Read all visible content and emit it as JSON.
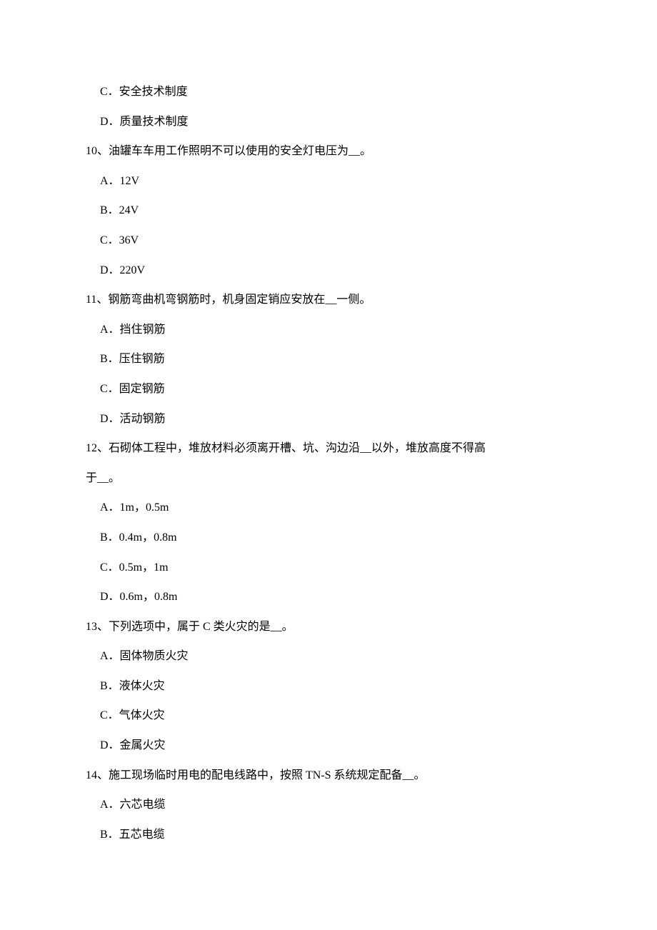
{
  "text_color": "#000000",
  "background_color": "#ffffff",
  "font_size_pt": 16,
  "line_height": 2.6,
  "lines": [
    {
      "type": "option",
      "text": "C．安全技术制度"
    },
    {
      "type": "option",
      "text": "D．质量技术制度"
    },
    {
      "type": "question",
      "text": "10、油罐车车用工作照明不可以使用的安全灯电压为__。"
    },
    {
      "type": "option",
      "text": "A．12V"
    },
    {
      "type": "option",
      "text": "B．24V"
    },
    {
      "type": "option",
      "text": "C．36V"
    },
    {
      "type": "option",
      "text": "D．220V"
    },
    {
      "type": "question",
      "text": "11、钢筋弯曲机弯钢筋时，机身固定销应安放在__一侧。"
    },
    {
      "type": "option",
      "text": "A．挡住钢筋"
    },
    {
      "type": "option",
      "text": "B．压住钢筋"
    },
    {
      "type": "option",
      "text": "C．固定钢筋"
    },
    {
      "type": "option",
      "text": "D．活动钢筋"
    },
    {
      "type": "question",
      "text": "12、石砌体工程中，堆放材料必须离开槽、坑、沟边沿__以外，堆放高度不得高"
    },
    {
      "type": "question",
      "text": "于__。"
    },
    {
      "type": "option",
      "text": "A．1m，0.5m"
    },
    {
      "type": "option",
      "text": "B．0.4m，0.8m"
    },
    {
      "type": "option",
      "text": "C．0.5m，1m"
    },
    {
      "type": "option",
      "text": "D．0.6m，0.8m"
    },
    {
      "type": "question",
      "text": "13、下列选项中，属于 C 类火灾的是__。"
    },
    {
      "type": "option",
      "text": "A．固体物质火灾"
    },
    {
      "type": "option",
      "text": "B．液体火灾"
    },
    {
      "type": "option",
      "text": "C．气体火灾"
    },
    {
      "type": "option",
      "text": "D．金属火灾"
    },
    {
      "type": "question",
      "text": "14、施工现场临时用电的配电线路中，按照 TN-S 系统规定配备__。"
    },
    {
      "type": "option",
      "text": "A．六芯电缆"
    },
    {
      "type": "option",
      "text": "B．五芯电缆"
    }
  ]
}
